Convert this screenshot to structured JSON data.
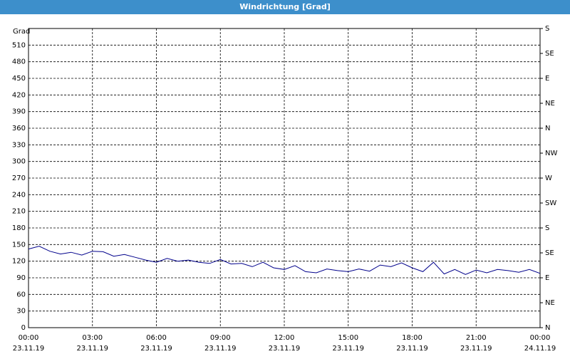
{
  "chart_data": {
    "type": "line",
    "title": "Windrichtung [Grad]",
    "y_label": "Grad",
    "x": [
      0,
      0.5,
      1,
      1.5,
      2,
      2.5,
      3,
      3.5,
      4,
      4.5,
      5,
      5.5,
      6,
      6.5,
      7,
      7.5,
      8,
      8.5,
      9,
      9.5,
      10,
      10.5,
      11,
      11.5,
      12,
      12.5,
      13,
      13.5,
      14,
      14.5,
      15,
      15.5,
      16,
      16.5,
      17,
      17.5,
      18,
      18.5,
      19,
      19.5,
      20,
      20.5,
      21,
      21.5,
      22,
      22.5,
      23,
      23.5,
      24
    ],
    "series": [
      {
        "name": "Windrichtung",
        "color": "#00008b",
        "values": [
          142,
          147,
          138,
          133,
          136,
          131,
          138,
          137,
          129,
          132,
          127,
          122,
          118,
          125,
          120,
          122,
          118,
          116,
          123,
          115,
          116,
          110,
          118,
          108,
          105,
          112,
          101,
          99,
          106,
          103,
          101,
          106,
          102,
          113,
          110,
          117,
          108,
          101,
          118,
          97,
          105,
          96,
          104,
          99,
          105,
          103,
          100,
          105,
          98
        ]
      }
    ],
    "xlim": [
      0,
      24
    ],
    "xticks": [
      {
        "value": 0,
        "label": "00:00"
      },
      {
        "value": 3,
        "label": "03:00"
      },
      {
        "value": 6,
        "label": "06:00"
      },
      {
        "value": 9,
        "label": "09:00"
      },
      {
        "value": 12,
        "label": "12:00"
      },
      {
        "value": 15,
        "label": "15:00"
      },
      {
        "value": 18,
        "label": "18:00"
      },
      {
        "value": 21,
        "label": "21:00"
      },
      {
        "value": 24,
        "label": "00:00"
      }
    ],
    "xtick_dates": [
      "23.11.19",
      "23.11.19",
      "23.11.19",
      "23.11.19",
      "23.11.19",
      "23.11.19",
      "23.11.19",
      "23.11.19",
      "24.11.19"
    ],
    "ylim": [
      0,
      540
    ],
    "yticks": [
      0,
      30,
      60,
      90,
      120,
      150,
      180,
      210,
      240,
      270,
      300,
      330,
      360,
      390,
      420,
      450,
      480,
      510
    ],
    "y2lim": [
      0,
      540
    ],
    "y2ticks": [
      {
        "value": 0,
        "label": "N"
      },
      {
        "value": 45,
        "label": "NE"
      },
      {
        "value": 90,
        "label": "E"
      },
      {
        "value": 135,
        "label": "SE"
      },
      {
        "value": 180,
        "label": "S"
      },
      {
        "value": 225,
        "label": "SW"
      },
      {
        "value": 270,
        "label": "W"
      },
      {
        "value": 315,
        "label": "NW"
      },
      {
        "value": 360,
        "label": "N"
      },
      {
        "value": 405,
        "label": "NE"
      },
      {
        "value": 450,
        "label": "E"
      },
      {
        "value": 495,
        "label": "SE"
      },
      {
        "value": 540,
        "label": "S"
      }
    ],
    "grid": true
  }
}
